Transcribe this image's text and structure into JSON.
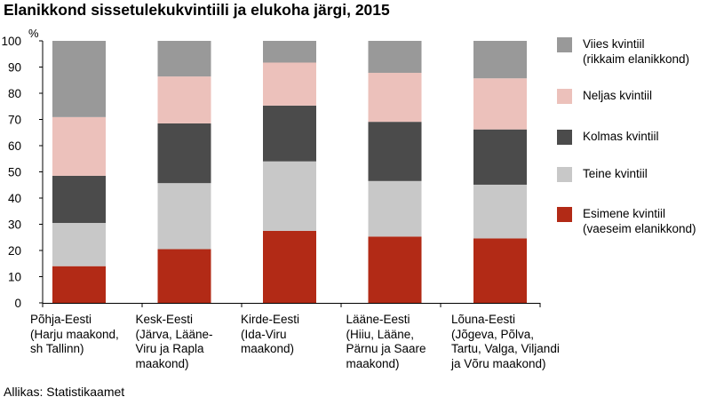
{
  "chart_data": {
    "type": "bar",
    "stacked": true,
    "title": "Elanikkond sissetulekukvintiili ja elukoha järgi, 2015",
    "ylabel": "%",
    "ylim": [
      0,
      100
    ],
    "yticks": [
      "0",
      "10",
      "20",
      "30",
      "40",
      "50",
      "60",
      "70",
      "80",
      "90",
      "100"
    ],
    "grid": false,
    "legend_position": "right",
    "categories": [
      "Põhja-Eesti\n(Harju maakond,\nsh Tallinn)",
      "Kesk-Eesti\n(Järva, Lääne-\nViru ja Rapla\nmaakond)",
      "Kirde-Eesti\n(Ida-Viru\nmaakond)",
      "Lääne-Eesti\n(Hiiu, Lääne,\nPärnu ja Saare\nmaakond)",
      "Lõuna-Eesti\n(Jõgeva, Põlva,\nTartu, Valga, Viljandi\nja Võru maakond)"
    ],
    "series": [
      {
        "name": "Esimene kvintiil\n(vaeseim elanikkond)",
        "color": "#b22a16",
        "values": [
          14,
          20.5,
          27.5,
          25.3,
          24.6
        ]
      },
      {
        "name": "Teine kvintiil",
        "color": "#c8c8c8",
        "values": [
          16.5,
          25.2,
          26.5,
          21.2,
          20.5
        ]
      },
      {
        "name": "Kolmas kvintiil",
        "color": "#4b4b4b",
        "values": [
          18,
          22.8,
          21.3,
          22.6,
          21.1
        ]
      },
      {
        "name": "Neljas kvintiil",
        "color": "#ecc1bb",
        "values": [
          22.4,
          17.9,
          16.4,
          18.7,
          19.5
        ]
      },
      {
        "name": "Viies kvintiil\n(rikkaim elanikkond)",
        "color": "#999999",
        "values": [
          29.1,
          13.6,
          8.3,
          12.2,
          14.3
        ]
      }
    ]
  },
  "source": "Allikas: Statistikaamet"
}
